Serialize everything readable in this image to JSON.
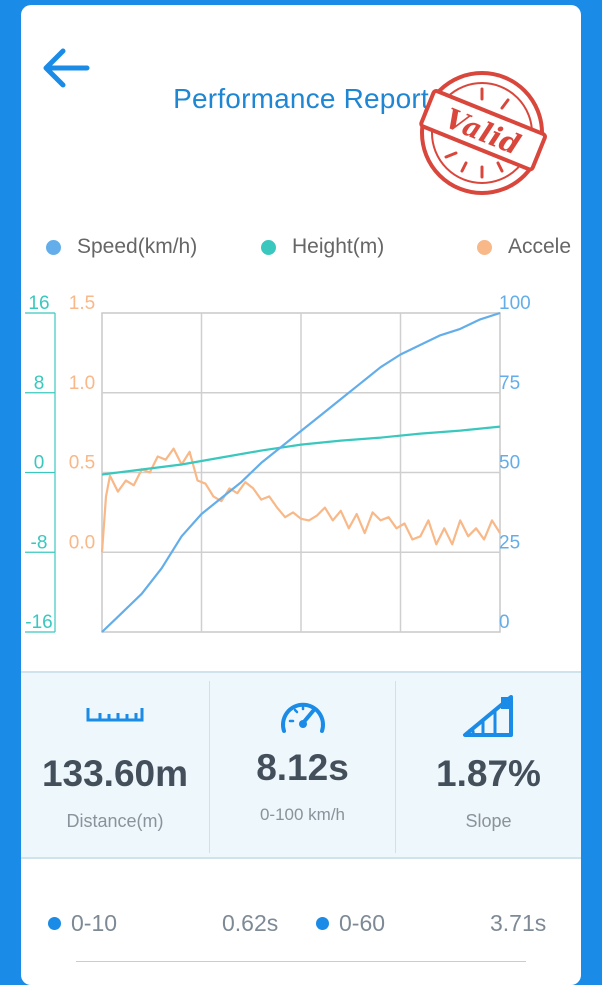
{
  "header": {
    "title": "Performance Report",
    "back_icon": "arrow-left-icon"
  },
  "stamp": {
    "text": "Valid",
    "color": "#d9473c"
  },
  "legend": [
    {
      "label": "Speed(km/h)",
      "color": "#63aeea"
    },
    {
      "label": "Height(m)",
      "color": "#3ac8be"
    },
    {
      "label": "Accele",
      "color": "#f8b888"
    }
  ],
  "chart_data": {
    "type": "line",
    "grid": true,
    "axes": {
      "height_ticks": [
        "16",
        "8",
        "0",
        "-8",
        "-16"
      ],
      "accel_ticks": [
        "1.5",
        "1.0",
        "0.5",
        "0.0"
      ],
      "speed_ticks": [
        "100",
        "75",
        "50",
        "25",
        "0"
      ],
      "height_range": [
        -16,
        16
      ],
      "accel_range": [
        -0.5,
        1.5
      ],
      "speed_range": [
        0,
        100
      ],
      "x_range": [
        0,
        100
      ]
    },
    "series": [
      {
        "name": "Speed(km/h)",
        "color": "#63aeea",
        "x": [
          0,
          5,
          10,
          15,
          20,
          25,
          30,
          35,
          40,
          45,
          50,
          55,
          60,
          65,
          70,
          75,
          80,
          85,
          90,
          95,
          100
        ],
        "values": [
          0,
          6,
          12,
          20,
          30,
          37,
          42,
          47,
          53,
          58,
          63,
          68,
          73,
          78,
          83,
          87,
          90,
          93,
          95,
          98,
          100
        ]
      },
      {
        "name": "Height(m)",
        "color": "#3ac8be",
        "x": [
          0,
          10,
          20,
          30,
          40,
          50,
          60,
          70,
          80,
          90,
          100
        ],
        "values": [
          -0.2,
          0.3,
          0.8,
          1.5,
          2.2,
          2.8,
          3.2,
          3.5,
          3.9,
          4.2,
          4.6
        ]
      },
      {
        "name": "Acceleration",
        "color": "#f8b888",
        "x": [
          0,
          1,
          2,
          4,
          6,
          8,
          10,
          12,
          14,
          16,
          18,
          20,
          22,
          24,
          26,
          28,
          30,
          32,
          34,
          36,
          38,
          40,
          42,
          44,
          46,
          48,
          50,
          52,
          54,
          56,
          58,
          60,
          62,
          64,
          66,
          68,
          70,
          72,
          74,
          76,
          78,
          80,
          82,
          84,
          86,
          88,
          90,
          92,
          94,
          96,
          98,
          100
        ],
        "values": [
          0.0,
          0.35,
          0.48,
          0.38,
          0.45,
          0.42,
          0.52,
          0.5,
          0.6,
          0.58,
          0.65,
          0.55,
          0.63,
          0.45,
          0.43,
          0.35,
          0.32,
          0.4,
          0.37,
          0.44,
          0.4,
          0.33,
          0.35,
          0.28,
          0.22,
          0.25,
          0.21,
          0.2,
          0.23,
          0.28,
          0.2,
          0.26,
          0.15,
          0.24,
          0.12,
          0.25,
          0.2,
          0.22,
          0.15,
          0.18,
          0.08,
          0.1,
          0.2,
          0.05,
          0.15,
          0.05,
          0.2,
          0.1,
          0.15,
          0.08,
          0.2,
          0.12
        ]
      }
    ]
  },
  "stats": [
    {
      "icon": "ruler-icon",
      "value": "133.60m",
      "label": "Distance(m)"
    },
    {
      "icon": "speedometer-icon",
      "value": "8.12s",
      "label": "0-100 km/h"
    },
    {
      "icon": "slope-icon",
      "value": "1.87%",
      "label": "Slope"
    }
  ],
  "splits": [
    {
      "label": "0-10",
      "time": "0.62s"
    },
    {
      "label": "0-60",
      "time": "3.71s"
    }
  ]
}
